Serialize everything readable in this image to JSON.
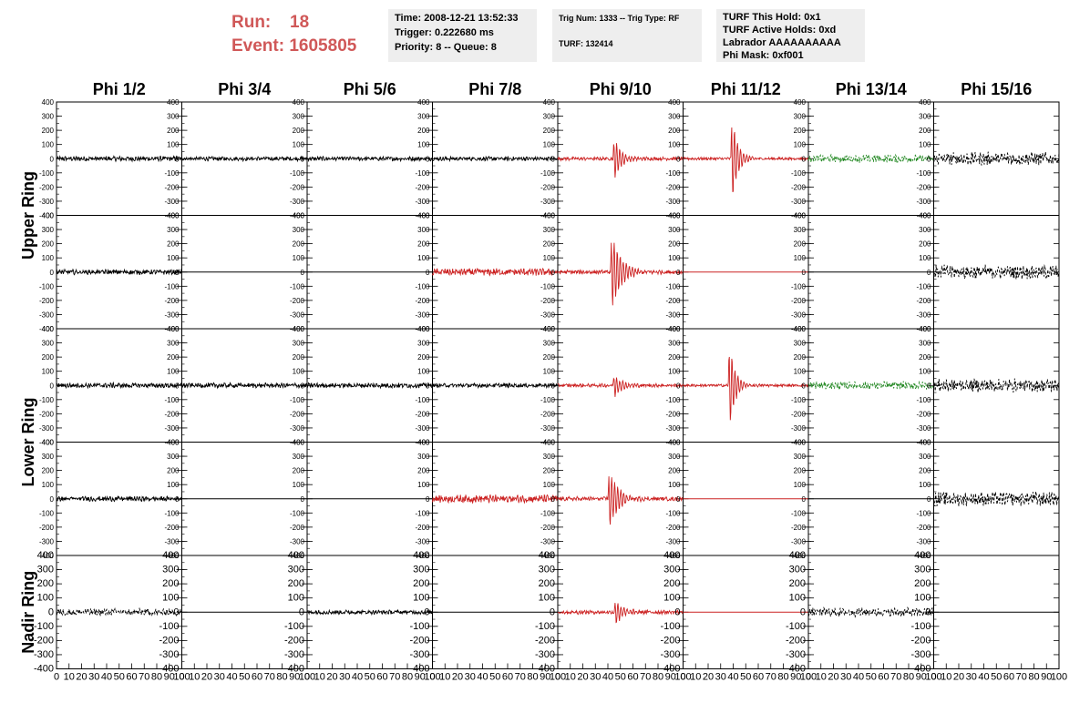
{
  "header": {
    "run_label": "Run:",
    "run_value": "18",
    "event_label": "Event:",
    "event_value": "1605805",
    "time": "Time: 2008-12-21 13:52:33",
    "trigger": "Trigger: 0.222680 ms",
    "priority": "Priority: 8 -- Queue: 8",
    "trig_num": "Trig Num: 1333 -- Trig Type: RF",
    "turf": "TURF: 132414",
    "turf_hold": "TURF This Hold: 0x1",
    "turf_active": "TURF Active Holds: 0xd",
    "labrador": "Labrador AAAAAAAAAA",
    "phi_mask": "Phi Mask: 0xf001"
  },
  "colors": {
    "background": "#ffffff",
    "normal": "#000000",
    "triggered": "#cc2222",
    "masked": "#228822",
    "header_red": "#d05858",
    "box_bg": "#eeeeee"
  },
  "chart_data": {
    "type": "line",
    "grid": false,
    "legend": "none",
    "columns": [
      "Phi 1/2",
      "Phi 3/4",
      "Phi 5/6",
      "Phi 7/8",
      "Phi 9/10",
      "Phi 11/12",
      "Phi 13/14",
      "Phi 15/16"
    ],
    "ring_labels": [
      {
        "text": "Upper Ring",
        "rows": [
          0,
          1
        ]
      },
      {
        "text": "Lower Ring",
        "rows": [
          2,
          3
        ]
      },
      {
        "text": "Nadir Ring",
        "rows": [
          4
        ]
      }
    ],
    "xlim": [
      0,
      100
    ],
    "ylim": [
      -400,
      400
    ],
    "x_ticks": [
      "0",
      "10",
      "20",
      "30",
      "40",
      "50",
      "60",
      "70",
      "80",
      "90",
      "100"
    ],
    "y_ticks": [
      "400",
      "300",
      "200",
      "100",
      "0",
      "-100",
      "-200",
      "-300",
      "-400"
    ],
    "panels": [
      [
        {
          "color": "black",
          "noise": 14,
          "pulse": 0,
          "t0": 0,
          "width": 0
        },
        {
          "color": "black",
          "noise": 12,
          "pulse": 0,
          "t0": 0,
          "width": 0
        },
        {
          "color": "black",
          "noise": 12,
          "pulse": 0,
          "t0": 0,
          "width": 0
        },
        {
          "color": "black",
          "noise": 12,
          "pulse": 0,
          "t0": 0,
          "width": 0
        },
        {
          "color": "red",
          "noise": 10,
          "pulse": 160,
          "t0": 44,
          "width": 14
        },
        {
          "color": "red",
          "noise": 8,
          "pulse": 400,
          "t0": 38,
          "width": 10
        },
        {
          "color": "green",
          "noise": 22,
          "pulse": 0,
          "t0": 0,
          "width": 0,
          "dashed": true
        },
        {
          "color": "black",
          "noise": 38,
          "pulse": 0,
          "t0": 0,
          "width": 0,
          "dashed": true
        }
      ],
      [
        {
          "color": "black",
          "noise": 14,
          "pulse": 0,
          "t0": 0,
          "width": 0
        },
        {
          "color": "black",
          "flat": true
        },
        {
          "color": "black",
          "flat": true
        },
        {
          "color": "red",
          "noise": 20,
          "pulse": 0,
          "t0": 0,
          "width": 0
        },
        {
          "color": "red",
          "noise": 12,
          "pulse": 320,
          "t0": 42,
          "width": 16
        },
        {
          "color": "red",
          "flat": true
        },
        {
          "color": "black",
          "flat": true
        },
        {
          "color": "black",
          "noise": 40,
          "pulse": 0,
          "t0": 0,
          "width": 0,
          "dashed": true
        }
      ],
      [
        {
          "color": "black",
          "noise": 14,
          "pulse": 0,
          "t0": 0,
          "width": 0
        },
        {
          "color": "black",
          "noise": 14,
          "pulse": 0,
          "t0": 0,
          "width": 0
        },
        {
          "color": "black",
          "noise": 14,
          "pulse": 0,
          "t0": 0,
          "width": 0
        },
        {
          "color": "black",
          "noise": 12,
          "pulse": 0,
          "t0": 0,
          "width": 0
        },
        {
          "color": "red",
          "noise": 10,
          "pulse": 100,
          "t0": 44,
          "width": 14
        },
        {
          "color": "red",
          "noise": 8,
          "pulse": 380,
          "t0": 36,
          "width": 10
        },
        {
          "color": "green",
          "noise": 22,
          "pulse": 0,
          "t0": 0,
          "width": 0,
          "dashed": true
        },
        {
          "color": "black",
          "noise": 38,
          "pulse": 0,
          "t0": 0,
          "width": 0,
          "dashed": true
        }
      ],
      [
        {
          "color": "black",
          "noise": 14,
          "pulse": 0,
          "t0": 0,
          "width": 0
        },
        {
          "color": "black",
          "flat": true
        },
        {
          "color": "black",
          "flat": true
        },
        {
          "color": "red",
          "noise": 22,
          "pulse": 0,
          "t0": 0,
          "width": 0
        },
        {
          "color": "red",
          "noise": 12,
          "pulse": 240,
          "t0": 40,
          "width": 16
        },
        {
          "color": "red",
          "flat": true
        },
        {
          "color": "black",
          "flat": true
        },
        {
          "color": "black",
          "noise": 40,
          "pulse": 0,
          "t0": 0,
          "width": 0,
          "dashed": true
        }
      ],
      [
        {
          "color": "black",
          "noise": 20,
          "pulse": 0,
          "t0": 0,
          "width": 0,
          "dashed": true
        },
        {
          "color": "black",
          "flat": true
        },
        {
          "color": "black",
          "noise": 12,
          "pulse": 0,
          "t0": 0,
          "width": 0
        },
        {
          "color": "black",
          "flat": true
        },
        {
          "color": "red",
          "noise": 12,
          "pulse": 110,
          "t0": 45,
          "width": 14
        },
        {
          "color": "red",
          "flat": true
        },
        {
          "color": "black",
          "noise": 24,
          "pulse": 0,
          "t0": 0,
          "width": 0,
          "dashed": true
        },
        {
          "color": "black",
          "flat": true
        }
      ]
    ]
  }
}
